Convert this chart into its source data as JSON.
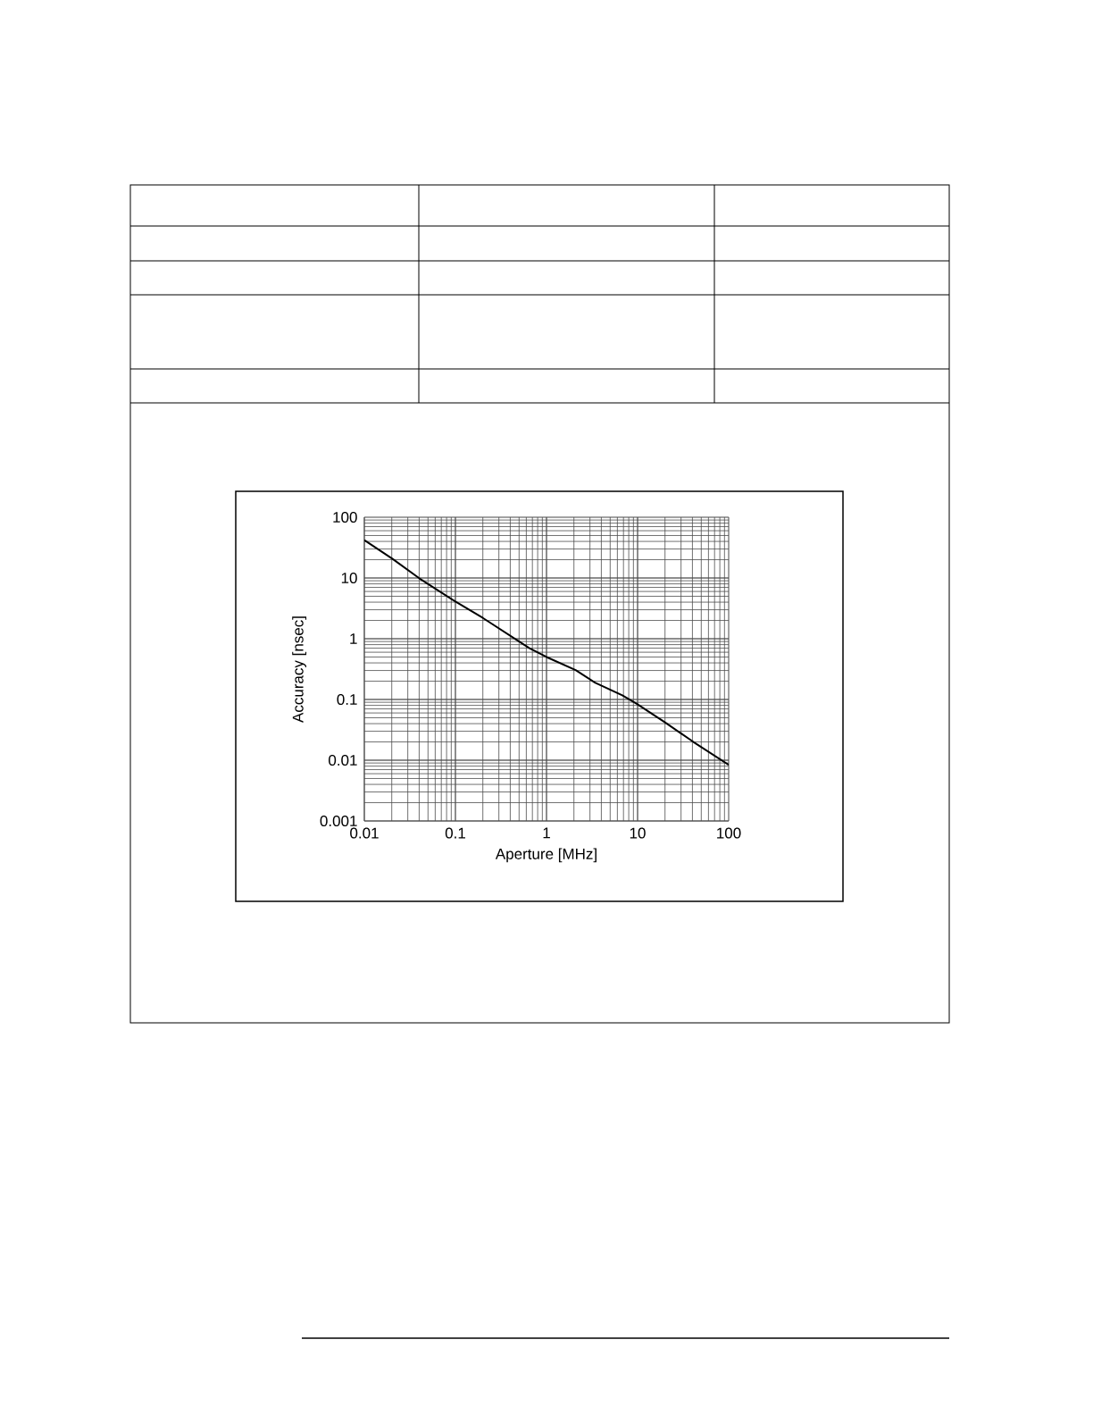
{
  "chart_data": {
    "type": "line",
    "xlabel": "Aperture [MHz]",
    "ylabel": "Accuracy [nsec]",
    "x": [
      0.01,
      0.0204,
      0.04,
      0.1,
      0.2,
      0.65,
      1.0,
      2.09,
      3.4,
      6.8,
      9.8,
      20,
      41,
      100
    ],
    "series": [
      {
        "color": "#000000",
        "values": [
          42,
          20.6,
          9.9,
          4.1,
          2.2,
          0.7,
          0.5,
          0.305,
          0.19,
          0.117,
          0.085,
          0.042,
          0.02,
          0.0084
        ]
      }
    ],
    "xlim": [
      0.01,
      100
    ],
    "ylim": [
      0.001,
      100
    ],
    "xticks": [
      0.01,
      0.1,
      1,
      10,
      100
    ],
    "yticks": [
      0.001,
      0.01,
      0.1,
      1,
      10,
      100
    ],
    "log": "xy",
    "grid": true,
    "marker": "none",
    "line_style": "solid"
  }
}
